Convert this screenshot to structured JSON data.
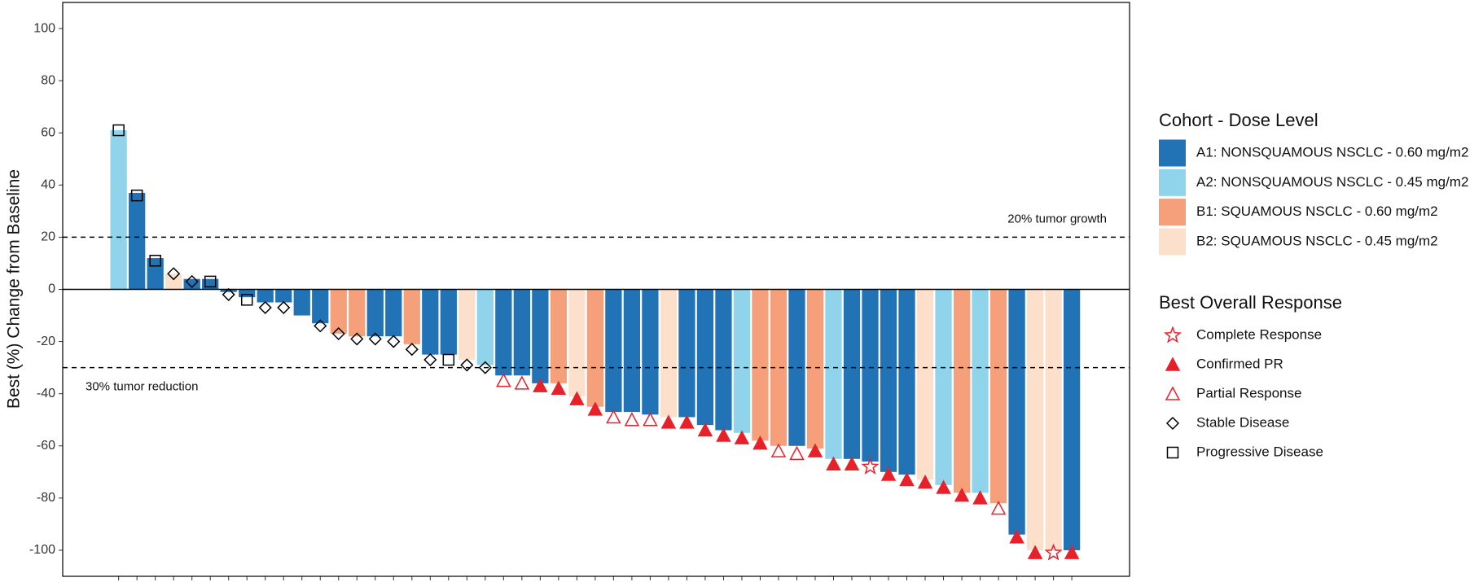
{
  "chart_data": {
    "type": "bar",
    "y_label": "Best (%) Change from Baseline",
    "ylim": [
      -110,
      110
    ],
    "yticks": [
      -100,
      -80,
      -60,
      -40,
      -20,
      0,
      20,
      40,
      60,
      80,
      100
    ],
    "categories": [
      null,
      null,
      null,
      null,
      null,
      null,
      null,
      null,
      null,
      null,
      null,
      null,
      null,
      null,
      null,
      null,
      null,
      null,
      null,
      null,
      null,
      null,
      null,
      null,
      null,
      null,
      null,
      null,
      null,
      null,
      null,
      null,
      null,
      null,
      null,
      null,
      null,
      null,
      null,
      null,
      null,
      null,
      null,
      null,
      null,
      null,
      null,
      null,
      null,
      null,
      null,
      null,
      null
    ],
    "reference_lines": [
      {
        "value": 20,
        "label": "20% tumor growth"
      },
      {
        "value": -30,
        "label": "30% tumor reduction"
      }
    ],
    "legend_title": "Cohort - Dose Level",
    "series": [
      {
        "name": "A1: NONSQUAMOUS NSCLC - 0.60 mg/m2",
        "color": "#2272b6",
        "values": [
          null,
          37,
          12,
          null,
          4,
          4,
          -1,
          -3,
          -5,
          -5,
          -10,
          -13,
          null,
          null,
          -18,
          -18,
          null,
          -25,
          -25,
          null,
          null,
          -33,
          -33,
          -36,
          null,
          null,
          null,
          -47,
          -47,
          -48,
          null,
          -49,
          -52,
          -54,
          null,
          null,
          null,
          -60,
          null,
          null,
          -65,
          -66,
          -70,
          -71,
          null,
          null,
          null,
          null,
          null,
          -94,
          null,
          null,
          -100
        ]
      },
      {
        "name": "A2: NONSQUAMOUS NSCLC - 0.45 mg/m2",
        "color": "#8fd4eb",
        "values": [
          61,
          null,
          null,
          null,
          null,
          null,
          null,
          null,
          null,
          null,
          null,
          null,
          null,
          null,
          null,
          null,
          null,
          null,
          null,
          null,
          -29,
          null,
          null,
          null,
          null,
          null,
          null,
          null,
          null,
          null,
          null,
          null,
          null,
          null,
          -55,
          null,
          null,
          null,
          null,
          -65,
          null,
          null,
          null,
          null,
          null,
          -75,
          null,
          -78,
          null,
          null,
          null,
          null,
          null
        ]
      },
      {
        "name": "B1: SQUAMOUS NSCLC - 0.60 mg/m2",
        "color": "#f5a07a",
        "values": [
          null,
          null,
          null,
          null,
          null,
          null,
          null,
          null,
          null,
          null,
          null,
          null,
          -17,
          -18,
          null,
          null,
          -21,
          null,
          null,
          null,
          null,
          null,
          null,
          null,
          -36,
          null,
          -45,
          null,
          null,
          null,
          null,
          null,
          null,
          null,
          null,
          -58,
          -60,
          null,
          -61,
          null,
          null,
          null,
          null,
          null,
          null,
          null,
          -78,
          null,
          -82,
          null,
          null,
          null,
          null
        ]
      },
      {
        "name": "B2: SQUAMOUS NSCLC - 0.45 mg/m2",
        "color": "#fde0cc",
        "values": [
          null,
          null,
          null,
          6,
          null,
          null,
          null,
          null,
          null,
          null,
          null,
          null,
          null,
          null,
          null,
          null,
          null,
          null,
          null,
          -27,
          null,
          null,
          null,
          null,
          null,
          -41,
          null,
          null,
          null,
          null,
          -49,
          null,
          null,
          null,
          null,
          null,
          null,
          null,
          null,
          null,
          null,
          null,
          null,
          null,
          -73,
          null,
          null,
          null,
          null,
          null,
          -100,
          -100,
          null
        ]
      }
    ],
    "marker_legend_title": "Best Overall Response",
    "markers": [
      {
        "name": "Complete Response",
        "color": "#e8202a",
        "shape": "star",
        "filled": false,
        "values": [
          null,
          null,
          null,
          null,
          null,
          null,
          null,
          null,
          null,
          null,
          null,
          null,
          null,
          null,
          null,
          null,
          null,
          null,
          null,
          null,
          null,
          null,
          null,
          null,
          null,
          null,
          null,
          null,
          null,
          null,
          null,
          null,
          null,
          null,
          null,
          null,
          null,
          null,
          null,
          null,
          null,
          -68,
          null,
          null,
          null,
          null,
          null,
          null,
          null,
          null,
          null,
          -101,
          null
        ]
      },
      {
        "name": "Confirmed PR",
        "color": "#e8202a",
        "shape": "triangle",
        "filled": true,
        "values": [
          null,
          null,
          null,
          null,
          null,
          null,
          null,
          null,
          null,
          null,
          null,
          null,
          null,
          null,
          null,
          null,
          null,
          null,
          null,
          null,
          null,
          null,
          null,
          -37,
          -38,
          -42,
          -46,
          null,
          null,
          null,
          -51,
          -51,
          -54,
          -56,
          -57,
          -59,
          null,
          null,
          -62,
          -67,
          -67,
          null,
          -71,
          -73,
          -74,
          -76,
          -79,
          -80,
          null,
          -95,
          -101,
          null,
          -101
        ]
      },
      {
        "name": "Partial Response",
        "color": "#e8202a",
        "shape": "triangle",
        "filled": false,
        "values": [
          null,
          null,
          null,
          null,
          null,
          null,
          null,
          null,
          null,
          null,
          null,
          null,
          null,
          null,
          null,
          null,
          null,
          null,
          null,
          null,
          null,
          -35,
          -36,
          null,
          null,
          null,
          null,
          -49,
          -50,
          -50,
          null,
          null,
          null,
          null,
          null,
          null,
          -62,
          -63,
          null,
          null,
          null,
          null,
          null,
          null,
          null,
          null,
          null,
          null,
          -84,
          null,
          null,
          null,
          null
        ]
      },
      {
        "name": "Stable Disease",
        "color": "#000000",
        "shape": "diamond",
        "filled": false,
        "values": [
          null,
          null,
          null,
          6,
          3,
          null,
          -2,
          null,
          -7,
          -7,
          null,
          -14,
          -17,
          -19,
          -19,
          -20,
          -23,
          -27,
          null,
          -29,
          -30,
          null,
          null,
          null,
          null,
          null,
          null,
          null,
          null,
          null,
          null,
          null,
          null,
          null,
          null,
          null,
          null,
          null,
          null,
          null,
          null,
          null,
          null,
          null,
          null,
          null,
          null,
          null,
          null,
          null,
          null,
          null,
          null
        ]
      },
      {
        "name": "Progressive Disease",
        "color": "#000000",
        "shape": "square",
        "filled": false,
        "values": [
          61,
          36,
          11,
          null,
          null,
          3,
          null,
          -4,
          null,
          null,
          null,
          null,
          null,
          null,
          null,
          null,
          null,
          null,
          -27,
          null,
          null,
          null,
          null,
          null,
          null,
          null,
          null,
          null,
          null,
          null,
          null,
          null,
          null,
          null,
          null,
          null,
          null,
          null,
          null,
          null,
          null,
          null,
          null,
          null,
          null,
          null,
          null,
          null,
          null,
          null,
          null,
          null,
          null
        ]
      }
    ]
  }
}
